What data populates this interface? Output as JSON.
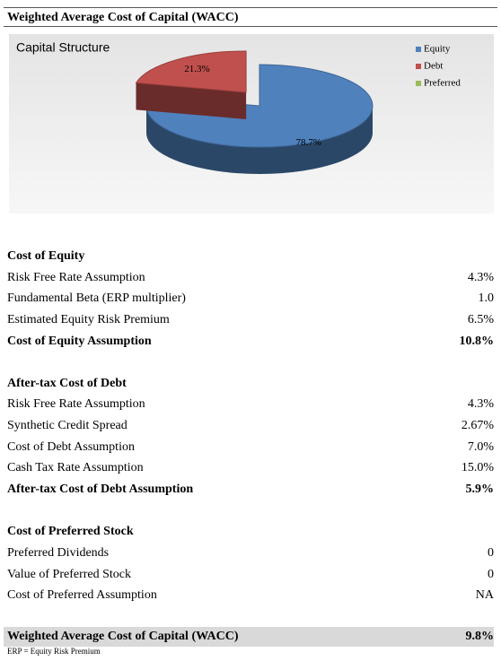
{
  "header": {
    "title": "Weighted Average Cost of Capital (WACC)"
  },
  "chart_data": {
    "type": "pie",
    "title": "Capital Structure",
    "categories": [
      "Equity",
      "Debt",
      "Preferred"
    ],
    "values": [
      78.7,
      21.3,
      0
    ],
    "value_labels": [
      "78.7%",
      "21.3%",
      null
    ],
    "colors": [
      "#4f81bd",
      "#c0504d",
      "#9bbb59"
    ],
    "exploded": [
      false,
      true,
      false
    ],
    "legend": "top-right"
  },
  "sections": [
    {
      "heading": "Cost of Equity",
      "rows": [
        {
          "label": "Risk Free Rate Assumption",
          "value": "4.3%"
        },
        {
          "label": "Fundamental Beta (ERP multiplier)",
          "value": "1.0"
        },
        {
          "label": "Estimated Equity Risk Premium",
          "value": "6.5%"
        },
        {
          "label": "Cost of Equity Assumption",
          "value": "10.8%",
          "bold": true
        }
      ]
    },
    {
      "heading": "After-tax Cost of Debt",
      "rows": [
        {
          "label": "Risk Free Rate Assumption",
          "value": "4.3%"
        },
        {
          "label": "Synthetic Credit Spread",
          "value": "2.67%"
        },
        {
          "label": "Cost of Debt Assumption",
          "value": "7.0%"
        },
        {
          "label": "Cash Tax Rate Assumption",
          "value": "15.0%"
        },
        {
          "label": "After-tax Cost of Debt Assumption",
          "value": "5.9%",
          "bold": true
        }
      ]
    },
    {
      "heading": "Cost of Preferred Stock",
      "rows": [
        {
          "label": "Preferred Dividends",
          "value": "0"
        },
        {
          "label": "Value of Preferred Stock",
          "value": "0"
        },
        {
          "label": "Cost of Preferred Assumption",
          "value": "NA"
        }
      ]
    }
  ],
  "total": {
    "label": "Weighted Average Cost of Capital (WACC)",
    "value": "9.8%"
  },
  "footnote": "ERP = Equity Risk Premium"
}
